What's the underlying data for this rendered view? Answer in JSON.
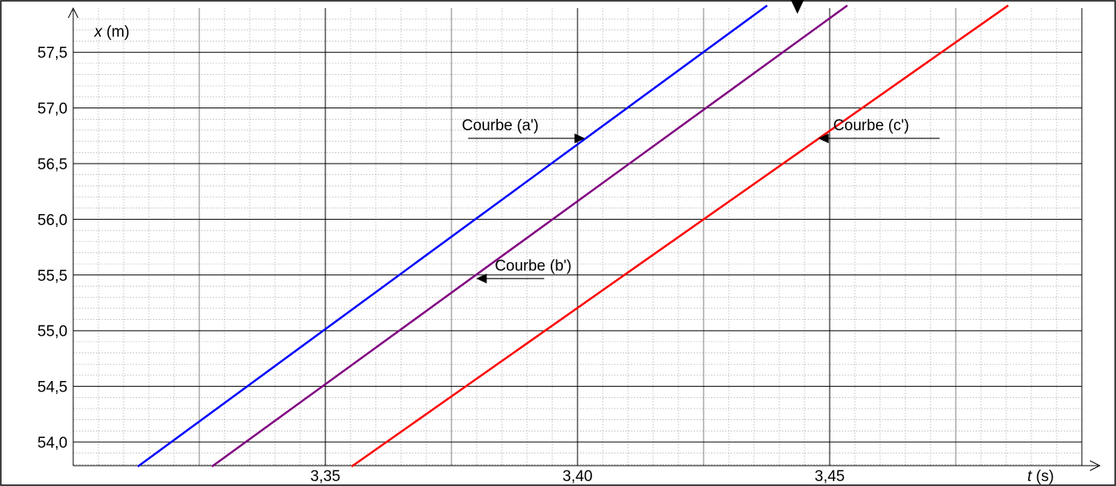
{
  "chart_data": {
    "type": "line",
    "xlabel_var": "t",
    "xlabel_unit": " (s)",
    "ylabel_var": "x",
    "ylabel_unit": " (m)",
    "xlim": [
      3.3,
      3.5
    ],
    "ylim": [
      53.8,
      57.9
    ],
    "x_ticks": [
      3.35,
      3.4,
      3.45
    ],
    "x_tick_labels": [
      "3,35",
      "3,40",
      "3,45"
    ],
    "y_ticks": [
      54.0,
      54.5,
      55.0,
      55.5,
      56.0,
      56.5,
      57.0,
      57.5
    ],
    "y_tick_labels": [
      "54,0",
      "54,5",
      "55,0",
      "55,5",
      "56,0",
      "56,5",
      "57,0",
      "57,5"
    ],
    "grid": true,
    "series": [
      {
        "name": "Courbe (a')",
        "color": "#0000ff",
        "x": [
          3.3128,
          3.4376
        ],
        "y": [
          53.78,
          57.92
        ]
      },
      {
        "name": "Courbe (b')",
        "color": "#800080",
        "x": [
          3.3275,
          3.4535
        ],
        "y": [
          53.78,
          57.92
        ]
      },
      {
        "name": "Courbe (c')",
        "color": "#ff0000",
        "x": [
          3.3552,
          3.4854
        ],
        "y": [
          53.78,
          57.92
        ]
      }
    ],
    "annotations": [
      {
        "text": "Courbe (a')",
        "line_x": [
          3.3783,
          3.4015
        ],
        "line_y": 56.727,
        "text_x": 3.3923,
        "text_y": 56.8,
        "anchor": "end"
      },
      {
        "text": "Courbe (b')",
        "line_x": [
          3.3934,
          3.3799
        ],
        "line_y": 55.468,
        "text_x": 3.3836,
        "text_y": 55.54,
        "anchor": "start"
      },
      {
        "text": "Courbe (c')",
        "line_x": [
          3.4718,
          3.4477
        ],
        "line_y": 56.727,
        "text_x": 3.4507,
        "text_y": 56.8,
        "anchor": "start"
      }
    ],
    "marker": {
      "x": 3.4436,
      "shape": "down-triangle"
    }
  }
}
